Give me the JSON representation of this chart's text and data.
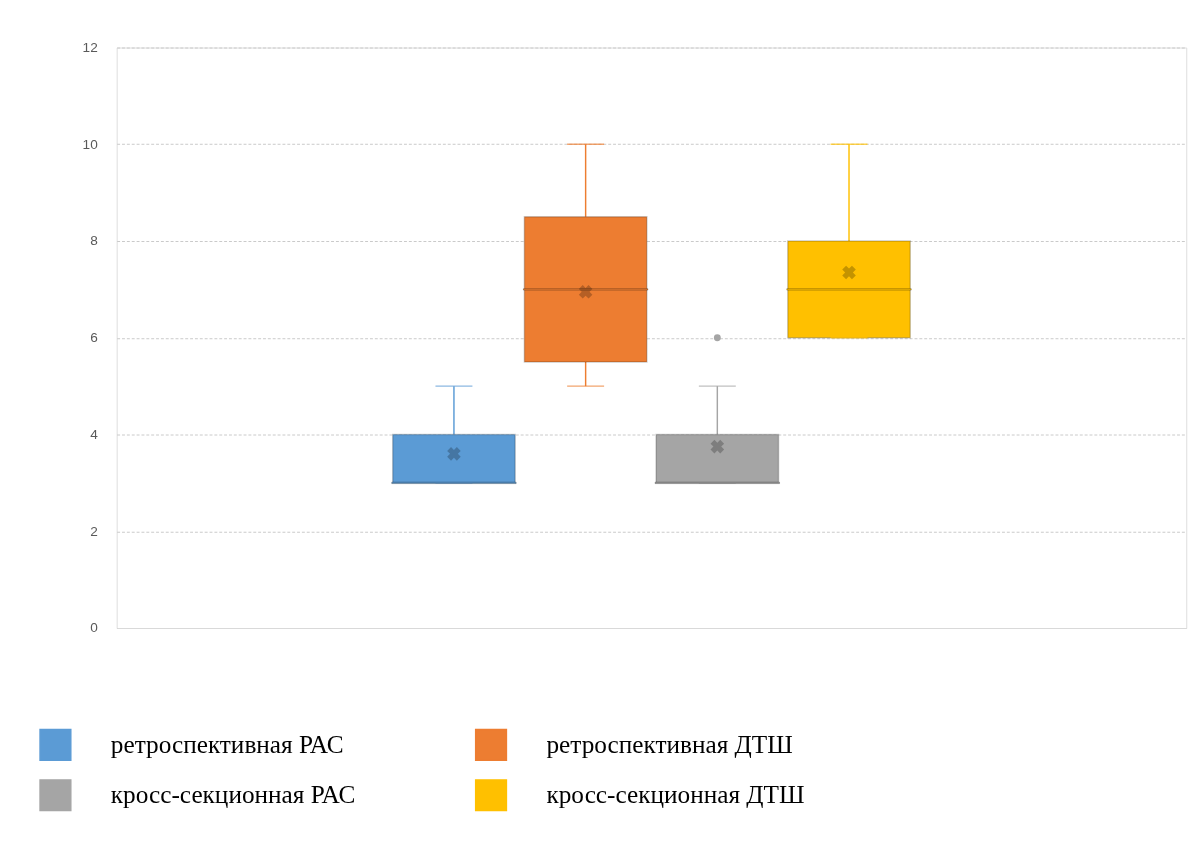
{
  "chart_data": {
    "type": "box",
    "categories": [
      null
    ],
    "series": [
      {
        "name": "ретроспективная РАС",
        "color": "#5b9bd5",
        "boxes": [
          {
            "low": 3,
            "q1": 3,
            "median": 3,
            "q3": 4,
            "high": 5,
            "mean": 3.6
          }
        ]
      },
      {
        "name": "ретроспективная ДТШ",
        "color": "#ed7d31",
        "boxes": [
          {
            "low": 5,
            "q1": 5.5,
            "median": 7,
            "q3": 8.5,
            "high": 10,
            "mean": 6.95
          }
        ]
      },
      {
        "name": "кросс-секционная РАС",
        "color": "#a5a5a5",
        "boxes": [
          {
            "low": 3,
            "q1": 3,
            "median": 3,
            "q3": 4,
            "high": 5,
            "mean": 3.75,
            "outliers": [
              6
            ]
          }
        ]
      },
      {
        "name": "кросс-секционная ДТШ",
        "color": "#ffc000",
        "boxes": [
          {
            "low": 6,
            "q1": 6,
            "median": 7,
            "q3": 8,
            "high": 10,
            "mean": 7.35
          }
        ]
      }
    ],
    "ylim": [
      0,
      12
    ],
    "yticks": [
      0,
      2,
      4,
      6,
      8,
      10,
      12
    ],
    "grid": "y",
    "legend": "bottom",
    "tick_labels": "y"
  }
}
